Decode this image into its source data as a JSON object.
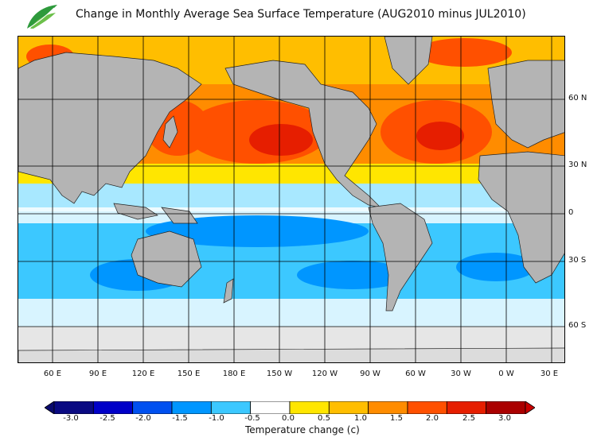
{
  "title": "Change in Monthly Average Sea Surface Temperature (AUG2010 minus JUL2010)",
  "logo": {
    "name": "leaf-logo",
    "caption": ""
  },
  "latitude_labels": [
    "60 N",
    "30 N",
    "0",
    "30 S",
    "60 S"
  ],
  "longitude_labels": [
    "60 E",
    "90 E",
    "120 E",
    "150 E",
    "180 E",
    "150 W",
    "120 W",
    "90 W",
    "60 W",
    "30 W",
    "0 W",
    "30 E"
  ],
  "colorbar": {
    "title": "Temperature change  (c)",
    "tick_labels": [
      "-3.0",
      "-2.5",
      "-2.0",
      "-1.5",
      "-1.0",
      "-0.5",
      "0.0",
      "0.5",
      "1.0",
      "1.5",
      "2.0",
      "2.5",
      "3.0"
    ],
    "colors": [
      "#0a0a82",
      "#0000c8",
      "#0050f0",
      "#0096ff",
      "#3cc8ff",
      "#ffffff",
      "#ffe600",
      "#ffbe00",
      "#ff8c00",
      "#ff5000",
      "#e61e00",
      "#aa0000"
    ],
    "under_color": "#0a0a6e",
    "over_color": "#c80000"
  },
  "colors": {
    "land": "#b4b4b4",
    "ice": "#e6e6e6",
    "grid": "#000000"
  }
}
